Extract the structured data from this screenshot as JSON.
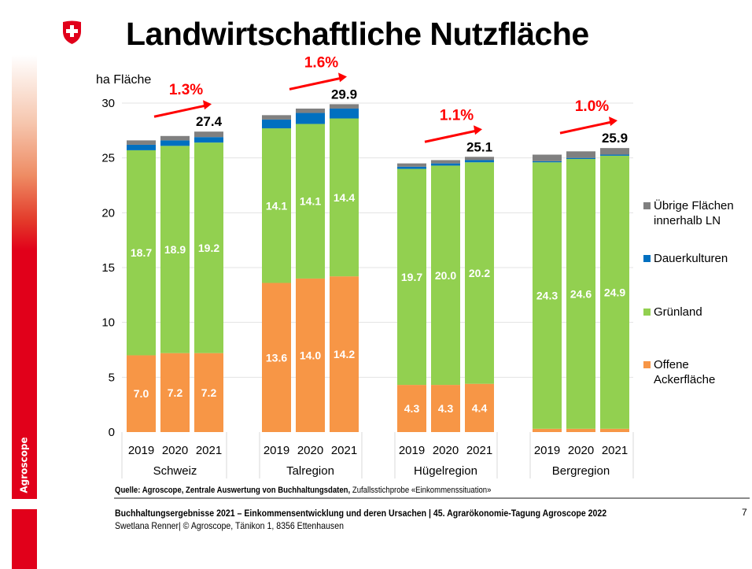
{
  "title": "Landwirtschaftliche Nutzfläche",
  "brand": {
    "name": "Agroscope",
    "accent": "#e1001a"
  },
  "source": {
    "bold": "Quelle: Agroscope, Zentrale Auswertung von Buchhaltungsdaten,",
    "normal": " Zufallsstichprobe «Einkommenssituation»"
  },
  "footer": {
    "line1": "Buchhaltungsergebnisse 2021 – Einkommensentwicklung und deren Ursachen | 45. Agrarökonomie-Tagung Agroscope 2022",
    "line2": "Swetlana Renner| © Agroscope, Tänikon 1, 8356 Ettenhausen",
    "page": "7"
  },
  "chart_data": {
    "type": "bar",
    "stacked": true,
    "title": "Landwirtschaftliche Nutzfläche",
    "ylabel": "ha Fläche",
    "xlabel": "",
    "ylim": [
      0,
      30
    ],
    "yticks": [
      0,
      5,
      10,
      15,
      20,
      25,
      30
    ],
    "grid": true,
    "legend_position": "right",
    "groups": [
      {
        "name": "Schweiz",
        "years": [
          "2019",
          "2020",
          "2021"
        ],
        "total_label": "27.4",
        "growth": "1.3%"
      },
      {
        "name": "Talregion",
        "years": [
          "2019",
          "2020",
          "2021"
        ],
        "total_label": "29.9",
        "growth": "1.6%"
      },
      {
        "name": "Hügelregion",
        "years": [
          "2019",
          "2020",
          "2021"
        ],
        "total_label": "25.1",
        "growth": "1.1%"
      },
      {
        "name": "Bergregion",
        "years": [
          "2019",
          "2020",
          "2021"
        ],
        "total_label": "25.9",
        "growth": "1.0%"
      }
    ],
    "categories": [
      "Schweiz 2019",
      "Schweiz 2020",
      "Schweiz 2021",
      "Talregion 2019",
      "Talregion 2020",
      "Talregion 2021",
      "Hügelregion 2019",
      "Hügelregion 2020",
      "Hügelregion 2021",
      "Bergregion 2019",
      "Bergregion 2020",
      "Bergregion 2021"
    ],
    "series": [
      {
        "name": "Offene Ackerfläche",
        "color": "#f79646",
        "values": [
          7.0,
          7.2,
          7.2,
          13.6,
          14.0,
          14.2,
          4.3,
          4.3,
          4.4,
          0.3,
          0.3,
          0.3
        ],
        "labels": [
          "7.0",
          "7.2",
          "7.2",
          "13.6",
          "14.0",
          "14.2",
          "4.3",
          "4.3",
          "4.4",
          "",
          "",
          ""
        ]
      },
      {
        "name": "Grünland",
        "color": "#92d050",
        "values": [
          18.7,
          18.9,
          19.2,
          14.1,
          14.1,
          14.4,
          19.7,
          20.0,
          20.2,
          24.3,
          24.6,
          24.9
        ],
        "labels": [
          "18.7",
          "18.9",
          "19.2",
          "14.1",
          "14.1",
          "14.4",
          "19.7",
          "20.0",
          "20.2",
          "24.3",
          "24.6",
          "24.9"
        ]
      },
      {
        "name": "Dauerkulturen",
        "color": "#0070c0",
        "values": [
          0.5,
          0.5,
          0.5,
          0.8,
          1.0,
          0.9,
          0.2,
          0.2,
          0.2,
          0.1,
          0.1,
          0.1
        ],
        "labels": []
      },
      {
        "name": "Übrige Flächen innerhalb LN",
        "color": "#808080",
        "values": [
          0.4,
          0.4,
          0.5,
          0.4,
          0.4,
          0.4,
          0.3,
          0.3,
          0.3,
          0.6,
          0.6,
          0.6
        ],
        "labels": []
      }
    ],
    "legend": [
      {
        "label": "Übrige Flächen innerhalb LN",
        "color": "#808080"
      },
      {
        "label": "Dauerkulturen",
        "color": "#0070c0"
      },
      {
        "label": "Grünland",
        "color": "#92d050"
      },
      {
        "label": "Offene Ackerfläche",
        "color": "#f79646"
      }
    ],
    "annotation_color": "#ff0000"
  }
}
